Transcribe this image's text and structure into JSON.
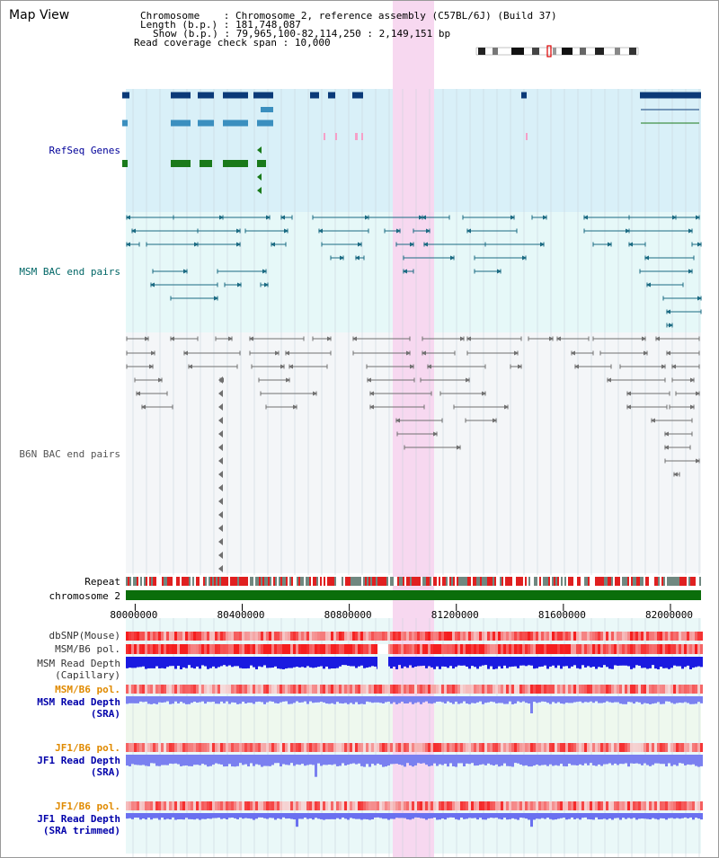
{
  "header": {
    "title": "Map View",
    "chromosome_key": "Chromosome",
    "chromosome_val": "Chromosome 2, reference assembly (C57BL/6J) (Build 37)",
    "length_key": "Length (b.p.)",
    "length_val": "181,748,087",
    "show_key": "Show (b.p.)",
    "show_val": "79,965,100-82,114,250 : 2,149,151 bp",
    "coverage_key": "Read coverage check span",
    "coverage_val": "10,000"
  },
  "tracks": {
    "refseq": "RefSeq Genes",
    "msm_bac": "MSM BAC end pairs",
    "b6n_bac": "B6N BAC end pairs",
    "repeat": "Repeat",
    "chromosome": "chromosome 2"
  },
  "axis": {
    "start_bp": 79965100,
    "end_bp": 82114250,
    "ticks": [
      "80000000",
      "80400000",
      "80800000",
      "81200000",
      "81600000",
      "82000000"
    ]
  },
  "lower_tracks": [
    {
      "id": "dbsnp",
      "lines": [
        "dbSNP(Mouse)"
      ],
      "color": "#333333"
    },
    {
      "id": "msm-b6-pol-1",
      "lines": [
        "MSM/B6 pol."
      ],
      "color": "#333333"
    },
    {
      "id": "msm-depth-cap",
      "lines": [
        "MSM Read Depth",
        "(Capillary)"
      ],
      "color": "#333333"
    },
    {
      "id": "msm-b6-pol-2",
      "lines": [
        "MSM/B6 pol."
      ],
      "color": "#e08a00"
    },
    {
      "id": "msm-depth-sra",
      "lines": [
        "MSM Read Depth",
        "(SRA)"
      ],
      "color": "#0000aa"
    },
    {
      "id": "jf1-b6-pol-1",
      "lines": [
        "JF1/B6 pol."
      ],
      "color": "#e08a00"
    },
    {
      "id": "jf1-depth-sra",
      "lines": [
        "JF1 Read Depth",
        "(SRA)"
      ],
      "color": "#0000aa"
    },
    {
      "id": "jf1-b6-pol-2",
      "lines": [
        "JF1/B6 pol."
      ],
      "color": "#e08a00"
    },
    {
      "id": "jf1-depth-trim",
      "lines": [
        "JF1 Read Depth",
        "(SRA trimmed)"
      ],
      "color": "#0000aa"
    }
  ],
  "colors": {
    "highlight": "#f7d8f0",
    "refseq_bg": "#d9f0f8",
    "msm_bg": "#e6f8f8",
    "b6n_bg": "#f4f6f8",
    "refseq_label": "#000099",
    "msm_label": "#006666",
    "b6n_label": "#555555",
    "gene_dark": "#0b3a78",
    "gene_mid": "#3b8fbf",
    "gene_green": "#1a7a1a",
    "msm_pair": "#1a6a82",
    "b6n_pair": "#707070",
    "chromosome_bar": "#0b6e0b"
  }
}
